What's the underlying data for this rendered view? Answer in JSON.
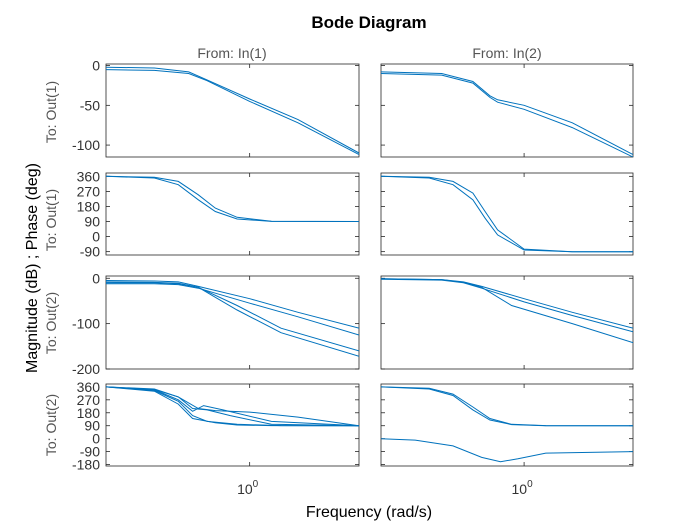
{
  "chart_data": {
    "type": "line",
    "title": "Bode Diagram",
    "xlabel": "Frequency  (rad/s)",
    "ylabel": "Magnitude (dB) ; Phase (deg)",
    "xscale": "log",
    "xlim": [
      0.3,
      2.5
    ],
    "xtick_values": [
      1
    ],
    "xtick_base": "10",
    "xtick_exp": "0",
    "grid": false,
    "legend": "none",
    "line_color": "#0072BD",
    "columns": [
      "From: In(1)",
      "From: In(2)"
    ],
    "rows": [
      {
        "label": "To: Out(1)",
        "kind": "magnitude",
        "ylim": [
          -115,
          2
        ],
        "yticks": [
          0,
          -50,
          -100
        ],
        "ytick_labels": [
          "0",
          "-50",
          "-100"
        ]
      },
      {
        "label": "To: Out(1)",
        "kind": "phase",
        "ylim": [
          -110,
          380
        ],
        "yticks": [
          360,
          270,
          180,
          90,
          0,
          -90
        ],
        "ytick_labels": [
          "360",
          "270",
          "180",
          "90",
          "0",
          "-90"
        ]
      },
      {
        "label": "To: Out(2)",
        "kind": "magnitude",
        "ylim": [
          -200,
          5
        ],
        "yticks": [
          0,
          -100,
          -200
        ],
        "ytick_labels": [
          "0",
          "-100",
          "-200"
        ]
      },
      {
        "label": "To: Out(2)",
        "kind": "phase",
        "ylim": [
          -190,
          380
        ],
        "yticks": [
          360,
          270,
          180,
          90,
          0,
          -90,
          -180
        ],
        "ytick_labels": [
          "360",
          "270",
          "180",
          "90",
          "0",
          "-90",
          "-180"
        ]
      }
    ],
    "panels": [
      {
        "row": 0,
        "col": 0,
        "series": [
          {
            "x": [
              0.3,
              0.45,
              0.6,
              0.7,
              1.0,
              1.5,
              2.5
            ],
            "y": [
              -2,
              -3,
              -8,
              -18,
              -42,
              -68,
              -110
            ]
          },
          {
            "x": [
              0.3,
              0.45,
              0.6,
              0.7,
              1.0,
              1.5,
              2.5
            ],
            "y": [
              -5,
              -6,
              -10,
              -19,
              -45,
              -72,
              -112
            ]
          }
        ]
      },
      {
        "row": 0,
        "col": 1,
        "series": [
          {
            "x": [
              0.3,
              0.5,
              0.65,
              0.75,
              0.8,
              1.0,
              1.5,
              2.5
            ],
            "y": [
              -8,
              -10,
              -20,
              -38,
              -43,
              -50,
              -72,
              -112
            ]
          },
          {
            "x": [
              0.3,
              0.5,
              0.65,
              0.75,
              0.8,
              1.0,
              1.5,
              2.5
            ],
            "y": [
              -10,
              -12,
              -22,
              -40,
              -46,
              -55,
              -78,
              -115
            ]
          }
        ]
      },
      {
        "row": 1,
        "col": 0,
        "series": [
          {
            "x": [
              0.3,
              0.45,
              0.55,
              0.65,
              0.75,
              0.9,
              1.2,
              2.5
            ],
            "y": [
              360,
              355,
              330,
              250,
              170,
              115,
              92,
              90
            ]
          },
          {
            "x": [
              0.3,
              0.45,
              0.55,
              0.65,
              0.75,
              0.9,
              1.2,
              2.5
            ],
            "y": [
              360,
              350,
              310,
              220,
              150,
              105,
              91,
              90
            ]
          }
        ]
      },
      {
        "row": 1,
        "col": 1,
        "series": [
          {
            "x": [
              0.3,
              0.45,
              0.55,
              0.65,
              0.72,
              0.8,
              1.0,
              1.5,
              2.5
            ],
            "y": [
              360,
              355,
              330,
              260,
              150,
              40,
              -75,
              -90,
              -90
            ]
          },
          {
            "x": [
              0.3,
              0.45,
              0.55,
              0.65,
              0.72,
              0.8,
              1.0,
              1.5,
              2.5
            ],
            "y": [
              360,
              350,
              310,
              220,
              110,
              10,
              -80,
              -90,
              -90
            ]
          }
        ]
      },
      {
        "row": 2,
        "col": 0,
        "series": [
          {
            "x": [
              0.3,
              0.45,
              0.55,
              0.65,
              1.0,
              1.5,
              2.5
            ],
            "y": [
              -5,
              -6,
              -8,
              -18,
              -45,
              -75,
              -110
            ]
          },
          {
            "x": [
              0.3,
              0.45,
              0.55,
              0.65,
              1.0,
              1.5,
              2.5
            ],
            "y": [
              -12,
              -12,
              -14,
              -22,
              -55,
              -85,
              -125
            ]
          },
          {
            "x": [
              0.3,
              0.45,
              0.55,
              0.65,
              0.9,
              1.3,
              2.5
            ],
            "y": [
              -10,
              -10,
              -12,
              -20,
              -60,
              -110,
              -160
            ]
          },
          {
            "x": [
              0.3,
              0.45,
              0.55,
              0.65,
              0.9,
              1.3,
              2.5
            ],
            "y": [
              -8,
              -9,
              -11,
              -20,
              -70,
              -120,
              -172
            ]
          }
        ]
      },
      {
        "row": 2,
        "col": 1,
        "series": [
          {
            "x": [
              0.3,
              0.5,
              0.6,
              0.7,
              1.0,
              1.5,
              2.5
            ],
            "y": [
              -1,
              -3,
              -8,
              -18,
              -45,
              -75,
              -110
            ]
          },
          {
            "x": [
              0.3,
              0.5,
              0.6,
              0.7,
              1.0,
              1.5,
              2.5
            ],
            "y": [
              -2,
              -4,
              -10,
              -22,
              -52,
              -82,
              -118
            ]
          },
          {
            "x": [
              0.3,
              0.5,
              0.6,
              0.7,
              0.9,
              1.5,
              2.5
            ],
            "y": [
              -1,
              -3,
              -9,
              -20,
              -60,
              -100,
              -142
            ]
          }
        ]
      },
      {
        "row": 3,
        "col": 0,
        "series": [
          {
            "x": [
              0.3,
              0.45,
              0.55,
              0.62,
              0.7,
              0.85,
              1.2,
              2.5
            ],
            "y": [
              360,
              345,
              290,
              210,
              200,
              160,
              100,
              90
            ]
          },
          {
            "x": [
              0.3,
              0.45,
              0.55,
              0.62,
              0.68,
              0.8,
              1.2,
              2.5
            ],
            "y": [
              360,
              340,
              270,
              190,
              230,
              200,
              120,
              90
            ]
          },
          {
            "x": [
              0.3,
              0.45,
              0.55,
              0.62,
              0.7,
              0.9,
              1.3,
              2.5
            ],
            "y": [
              360,
              335,
              260,
              160,
              120,
              100,
              91,
              90
            ]
          },
          {
            "x": [
              0.3,
              0.45,
              0.55,
              0.65,
              0.75,
              1.0,
              1.5,
              2.5
            ],
            "y": [
              360,
              342,
              290,
              210,
              195,
              185,
              150,
              90
            ]
          },
          {
            "x": [
              0.3,
              0.45,
              0.55,
              0.62,
              0.75,
              0.9,
              1.2,
              2.5
            ],
            "y": [
              360,
              330,
              240,
              140,
              110,
              95,
              91,
              90
            ]
          }
        ]
      },
      {
        "row": 3,
        "col": 1,
        "series": [
          {
            "x": [
              0.3,
              0.45,
              0.55,
              0.65,
              0.75,
              0.9,
              1.2,
              2.5
            ],
            "y": [
              360,
              350,
              310,
              220,
              140,
              100,
              91,
              90
            ]
          },
          {
            "x": [
              0.3,
              0.45,
              0.55,
              0.65,
              0.75,
              0.9,
              1.2,
              2.5
            ],
            "y": [
              360,
              345,
              300,
              200,
              130,
              98,
              90,
              90
            ]
          },
          {
            "x": [
              0.3,
              0.4,
              0.55,
              0.7,
              0.82,
              0.95,
              1.2,
              2.5
            ],
            "y": [
              0,
              -10,
              -50,
              -130,
              -160,
              -140,
              -100,
              -90
            ]
          }
        ]
      }
    ]
  }
}
